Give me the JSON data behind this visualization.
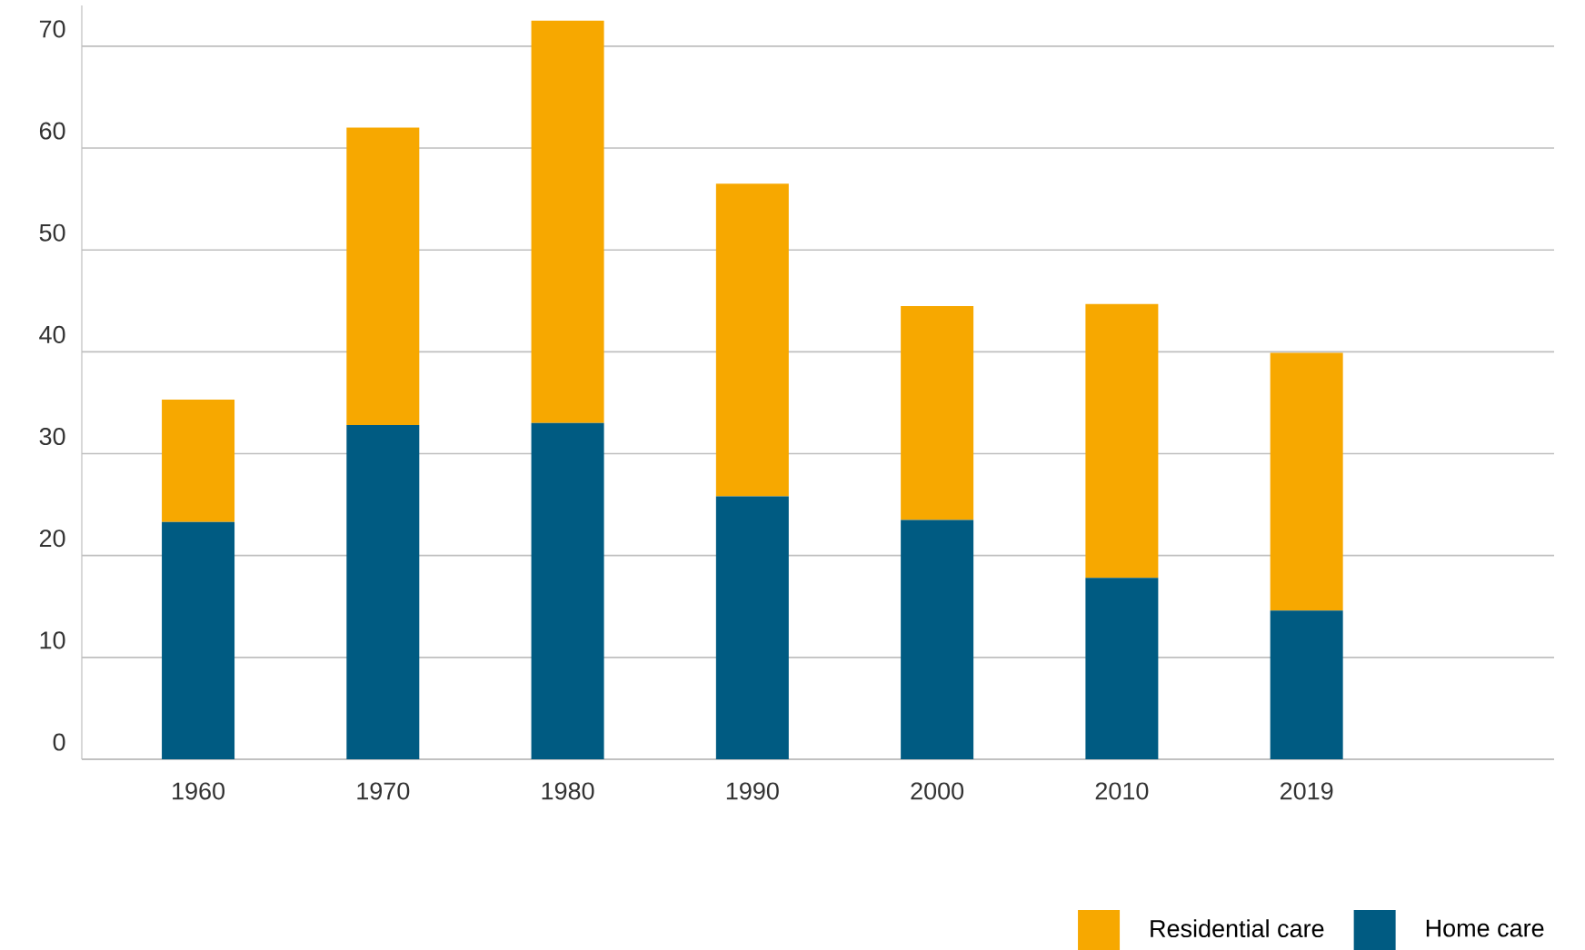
{
  "chart_data": {
    "type": "bar",
    "stacked": true,
    "categories": [
      "1960",
      "1970",
      "1980",
      "1990",
      "2000",
      "2010",
      "2019"
    ],
    "series": [
      {
        "name": "Home care",
        "color": "#005b82",
        "values": [
          23.3,
          32.8,
          33.0,
          25.8,
          23.5,
          17.8,
          14.6
        ]
      },
      {
        "name": "Residential care",
        "color": "#f7a800",
        "values": [
          12.0,
          29.2,
          39.5,
          30.7,
          21.0,
          26.9,
          25.3
        ]
      }
    ],
    "ylim": [
      0,
      74
    ],
    "yticks": [
      0,
      10,
      20,
      30,
      40,
      50,
      60,
      70
    ],
    "grid": "y",
    "legend": "bottom right"
  }
}
